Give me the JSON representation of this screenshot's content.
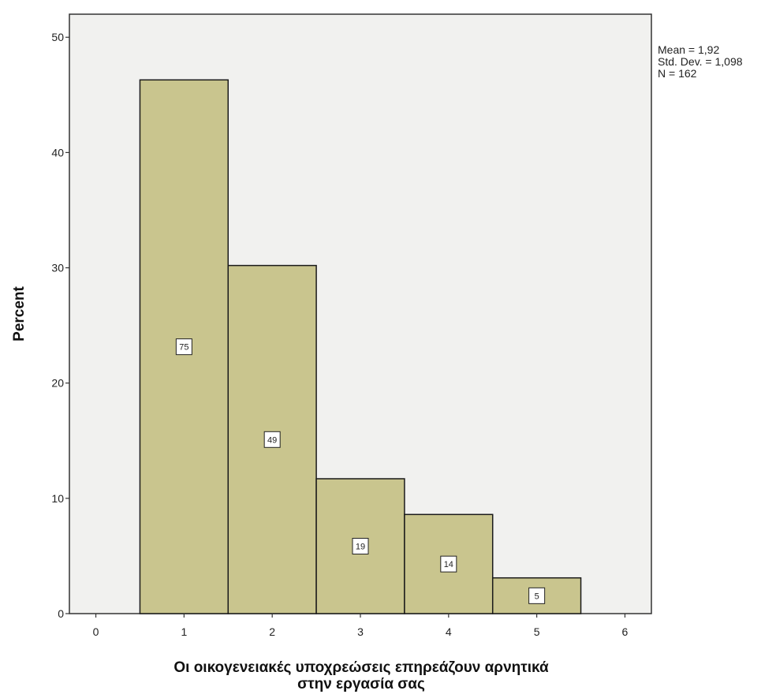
{
  "chart_data": {
    "type": "bar",
    "histogram": true,
    "xlabel_lines": [
      "Οι οικογενειακές υποχρεώσεις επηρεάζουν αρνητικά",
      "στην εργασία σας"
    ],
    "ylabel": "Percent",
    "x_ticks": [
      "0",
      "1",
      "2",
      "3",
      "4",
      "5",
      "6"
    ],
    "y_ticks": [
      "0",
      "10",
      "20",
      "30",
      "40",
      "50"
    ],
    "xlim": [
      -0.3,
      6.3
    ],
    "ylim": [
      0,
      52
    ],
    "bars": [
      {
        "x": 1,
        "value": 46.3,
        "count": "75"
      },
      {
        "x": 2,
        "value": 30.2,
        "count": "49"
      },
      {
        "x": 3,
        "value": 11.7,
        "count": "19"
      },
      {
        "x": 4,
        "value": 8.6,
        "count": "14"
      },
      {
        "x": 5,
        "value": 3.1,
        "count": "5"
      }
    ],
    "stats": {
      "mean": "Mean = 1,92",
      "std": "Std. Dev. = 1,098",
      "n": "N = 162"
    },
    "colors": {
      "bar_fill": "#c9c58e",
      "bar_stroke": "#1a1a1a",
      "plot_bg": "#f1f1ef"
    }
  }
}
